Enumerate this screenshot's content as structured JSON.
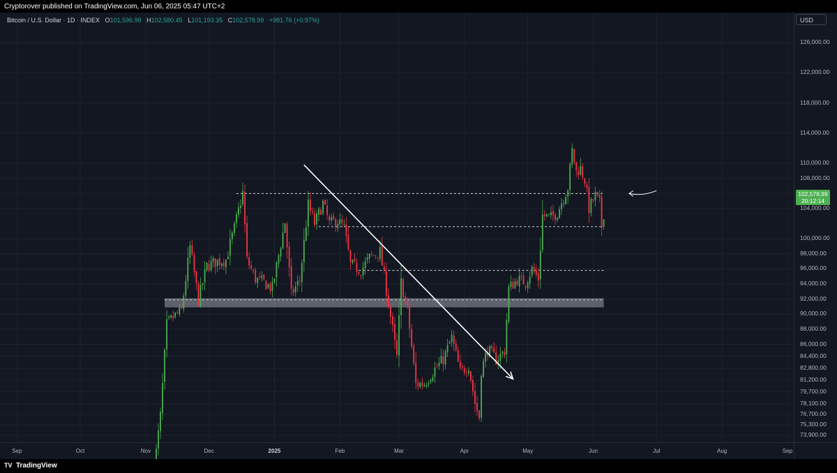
{
  "header": {
    "published_text": "Cryptorover published on TradingView.com, Jun 06, 2025 05:47 UTC+2"
  },
  "symbol_bar": {
    "symbol": "Bitcoin / U.S. Dollar · 1D · INDEX",
    "open_label": "O",
    "open": "101,596.98",
    "high_label": "H",
    "high": "102,580.45",
    "low_label": "L",
    "low": "101,193.35",
    "close_label": "C",
    "close": "102,578.99",
    "change": "+981.76 (+0.97%)"
  },
  "currency_button": "USD",
  "last_price": {
    "price": "102,578.99",
    "countdown": "20:12:14"
  },
  "footer": {
    "brand": "TradingView",
    "logo_glyph": "TV"
  },
  "colors": {
    "background": "#131722",
    "up": "#4caf50",
    "down": "#f23645",
    "grid": "#1e222d",
    "zone": "#787b86"
  },
  "chart_data": {
    "type": "candlestick",
    "title": "Bitcoin / U.S. Dollar · 1D · INDEX",
    "ylim": [
      73000,
      130000
    ],
    "y_ticks": [
      {
        "value": 126000,
        "label": "126,000.00"
      },
      {
        "value": 122000,
        "label": "122,000.00"
      },
      {
        "value": 118000,
        "label": "118,000.00"
      },
      {
        "value": 114000,
        "label": "114,000.00"
      },
      {
        "value": 110000,
        "label": "110,000.00"
      },
      {
        "value": 108000,
        "label": "108,000.00"
      },
      {
        "value": 106000,
        "label": "106,000.00"
      },
      {
        "value": 104000,
        "label": "104,000.00"
      },
      {
        "value": 100000,
        "label": "100,000.00"
      },
      {
        "value": 98000,
        "label": "98,000.00"
      },
      {
        "value": 96000,
        "label": "96,000.00"
      },
      {
        "value": 94000,
        "label": "94,000.00"
      },
      {
        "value": 92000,
        "label": "92,000.00"
      },
      {
        "value": 90000,
        "label": "90,000.00"
      },
      {
        "value": 88000,
        "label": "88,000.00"
      },
      {
        "value": 86000,
        "label": "86,000.00"
      },
      {
        "value": 84400,
        "label": "84,400.00"
      },
      {
        "value": 82800,
        "label": "82,800.00"
      },
      {
        "value": 81200,
        "label": "81,200.00"
      },
      {
        "value": 79700,
        "label": "79,700.00"
      },
      {
        "value": 78100,
        "label": "78,100.00"
      },
      {
        "value": 76700,
        "label": "76,700.00"
      },
      {
        "value": 75300,
        "label": "75,300.00"
      },
      {
        "value": 73900,
        "label": "73,900.00"
      }
    ],
    "x_ticks": [
      {
        "date": "2024-09-01",
        "label": "Sep"
      },
      {
        "date": "2024-10-01",
        "label": "Oct"
      },
      {
        "date": "2024-11-01",
        "label": "Nov"
      },
      {
        "date": "2024-12-01",
        "label": "Dec"
      },
      {
        "date": "2025-01-01",
        "label": "2025"
      },
      {
        "date": "2025-02-01",
        "label": "Feb"
      },
      {
        "date": "2025-03-01",
        "label": "Mar"
      },
      {
        "date": "2025-04-01",
        "label": "Apr"
      },
      {
        "date": "2025-05-01",
        "label": "May"
      },
      {
        "date": "2025-06-01",
        "label": "Jun"
      },
      {
        "date": "2025-07-01",
        "label": "Jul"
      },
      {
        "date": "2025-08-01",
        "label": "Aug"
      },
      {
        "date": "2025-09-01",
        "label": "Sep"
      }
    ],
    "x_range": [
      "2024-08-24",
      "2025-09-04"
    ],
    "series_start": "2024-11-05",
    "series_end": "2025-06-06",
    "close_anchors": [
      [
        "2024-11-05",
        69400
      ],
      [
        "2024-11-08",
        76500
      ],
      [
        "2024-11-11",
        88600
      ],
      [
        "2024-11-14",
        89600
      ],
      [
        "2024-11-18",
        90500
      ],
      [
        "2024-11-22",
        98900
      ],
      [
        "2024-11-26",
        91900
      ],
      [
        "2024-11-30",
        96400
      ],
      [
        "2024-12-05",
        97000
      ],
      [
        "2024-12-09",
        97200
      ],
      [
        "2024-12-13",
        101400
      ],
      [
        "2024-12-17",
        106100
      ],
      [
        "2024-12-19",
        97200
      ],
      [
        "2024-12-23",
        94700
      ],
      [
        "2024-12-27",
        94200
      ],
      [
        "2024-12-31",
        93400
      ],
      [
        "2025-01-06",
        102200
      ],
      [
        "2025-01-09",
        92600
      ],
      [
        "2025-01-13",
        94500
      ],
      [
        "2025-01-17",
        104500
      ],
      [
        "2025-01-20",
        102000
      ],
      [
        "2025-01-24",
        104700
      ],
      [
        "2025-01-27",
        102000
      ],
      [
        "2025-01-31",
        102400
      ],
      [
        "2025-02-03",
        101400
      ],
      [
        "2025-02-06",
        96600
      ],
      [
        "2025-02-11",
        95800
      ],
      [
        "2025-02-15",
        97500
      ],
      [
        "2025-02-20",
        98300
      ],
      [
        "2025-02-24",
        91500
      ],
      [
        "2025-02-28",
        84300
      ],
      [
        "2025-03-02",
        94200
      ],
      [
        "2025-03-05",
        90600
      ],
      [
        "2025-03-09",
        80700
      ],
      [
        "2025-03-13",
        80800
      ],
      [
        "2025-03-18",
        82700
      ],
      [
        "2025-03-22",
        84000
      ],
      [
        "2025-03-26",
        86900
      ],
      [
        "2025-03-30",
        82300
      ],
      [
        "2025-04-03",
        83200
      ],
      [
        "2025-04-06",
        78200
      ],
      [
        "2025-04-08",
        76300
      ],
      [
        "2025-04-09",
        82600
      ],
      [
        "2025-04-12",
        85300
      ],
      [
        "2025-04-16",
        84000
      ],
      [
        "2025-04-20",
        85100
      ],
      [
        "2025-04-22",
        93400
      ],
      [
        "2025-04-26",
        94600
      ],
      [
        "2025-04-30",
        94200
      ],
      [
        "2025-05-03",
        96000
      ],
      [
        "2025-05-06",
        94700
      ],
      [
        "2025-05-08",
        103100
      ],
      [
        "2025-05-12",
        102800
      ],
      [
        "2025-05-15",
        103500
      ],
      [
        "2025-05-20",
        106800
      ],
      [
        "2025-05-22",
        111700
      ],
      [
        "2025-05-24",
        108900
      ],
      [
        "2025-05-26",
        109400
      ],
      [
        "2025-05-28",
        107800
      ],
      [
        "2025-05-30",
        104000
      ],
      [
        "2025-06-02",
        105700
      ],
      [
        "2025-06-04",
        104700
      ],
      [
        "2025-06-05",
        101597
      ],
      [
        "2025-06-06",
        102579
      ]
    ],
    "last_candle": {
      "open": 101596.98,
      "high": 102580.45,
      "low": 101193.35,
      "close": 102578.99
    },
    "annotations": {
      "resistance_line": {
        "value": 106000,
        "from": "2024-12-14",
        "to": "2025-06-06",
        "style": "dashed"
      },
      "support_line_upper": {
        "value": 101600,
        "from": "2025-01-22",
        "to": "2025-06-06",
        "style": "dashed"
      },
      "support_line_mid": {
        "value": 95800,
        "from": "2025-02-10",
        "to": "2025-06-06",
        "style": "dashed"
      },
      "support_line_low": {
        "value": 91900,
        "from": "2024-11-10",
        "to": "2025-06-06",
        "style": "dashed"
      },
      "support_zone": {
        "from_value": 90900,
        "to_value": 92100,
        "from": "2024-11-10",
        "to": "2025-06-06"
      },
      "downtrend_arrow": {
        "from": [
          "2025-01-15",
          109800
        ],
        "to": [
          "2025-04-24",
          81400
        ]
      },
      "pointer_arrow": {
        "from": [
          "2025-07-01",
          106100
        ],
        "to": [
          "2025-06-18",
          106000
        ]
      }
    }
  }
}
